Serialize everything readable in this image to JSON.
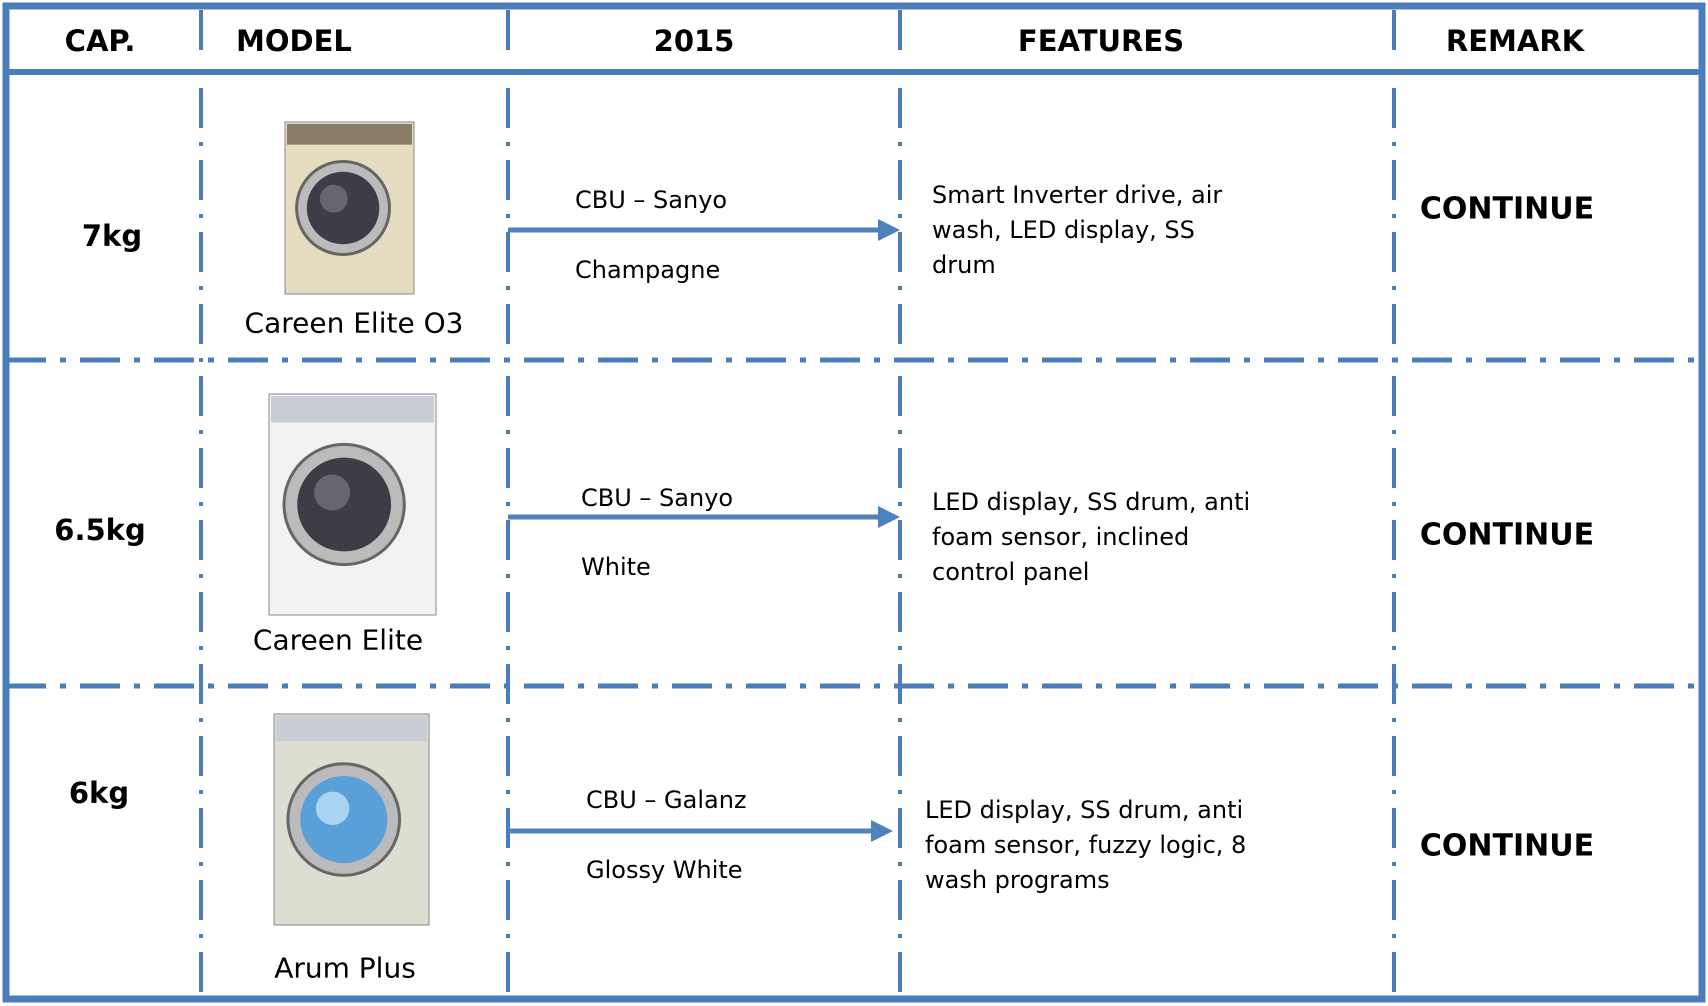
{
  "table": {
    "header": [
      "CAP.",
      "MODEL",
      "2015",
      "FEATURES",
      "REMARK"
    ],
    "rows": [
      {
        "cap": "7kg",
        "model": "Careen Elite O3",
        "source": "CBU – Sanyo",
        "color": "Champagne",
        "features": "Smart Inverter drive, air wash, LED display, SS drum",
        "remark": "CONTINUE"
      },
      {
        "cap": "6.5kg",
        "model": "Careen Elite",
        "source": "CBU – Sanyo",
        "color": "White",
        "features": "LED display, SS drum, anti foam sensor, inclined control panel",
        "remark": "CONTINUE"
      },
      {
        "cap": "6kg",
        "model": "Arum Plus",
        "source": "CBU – Galanz",
        "color": "Glossy White",
        "features": "LED display, SS drum, anti foam sensor, fuzzy logic, 8 wash programs",
        "remark": "CONTINUE"
      }
    ]
  }
}
